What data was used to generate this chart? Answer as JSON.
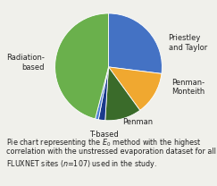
{
  "labels_display": [
    "Priestley\nand Taylor",
    "Penman-\nMonteith",
    "Penman",
    "T-based",
    "",
    "Radiation-\nbased"
  ],
  "values": [
    27,
    13,
    11,
    2,
    1,
    46
  ],
  "colors": [
    "#4472c4",
    "#f0a830",
    "#3a6b2a",
    "#1a3a8b",
    "#4f7fd4",
    "#6ab04c"
  ],
  "startangle": 90,
  "caption_line1": "Pie chart representing the $E_0$ method with the highest",
  "caption_line2": "correlation with the unstressed evaporation dataset for all",
  "caption_line3": "FLUXNET sites ($n$=107) used in the study.",
  "label_fontsize": 6.0,
  "caption_fontsize": 5.8,
  "bg_color": "#f0f0eb"
}
